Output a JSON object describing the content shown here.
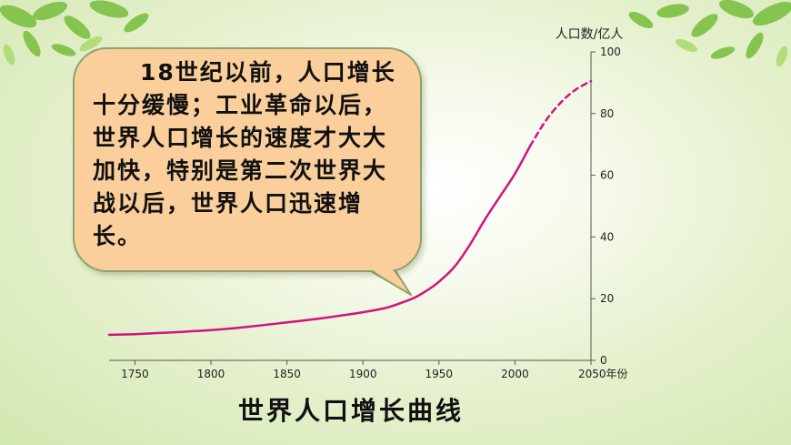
{
  "bubble": {
    "text": "18世纪以前，人口增长十分缓慢；工业革命以后，世界人口增长的速度才大大加快，特别是第二次世界大战以后，世界人口迅速增长。"
  },
  "caption": "世界人口增长曲线",
  "colors": {
    "curve": "#d0147e",
    "axis": "#555555",
    "bubble": "#fbcf9c"
  },
  "chart_data": {
    "type": "line",
    "title": "世界人口增长曲线",
    "ylabel": "人口数/亿人",
    "xlabel": "年份",
    "xlim": [
      1733,
      2050
    ],
    "ylim": [
      0,
      100
    ],
    "x_ticks": [
      1750,
      1800,
      1850,
      1900,
      1950,
      2000,
      2050
    ],
    "x_tick_labels": [
      "1750",
      "1800",
      "1850",
      "1900",
      "1950",
      "2000",
      "2050年份"
    ],
    "y_ticks": [
      0,
      20,
      40,
      60,
      80,
      100
    ],
    "y_tick_labels": [
      "0",
      "20",
      "40",
      "60",
      "80",
      "100"
    ],
    "grid": false,
    "series": [
      {
        "style": "solid",
        "x": [
          1733,
          1750,
          1775,
          1800,
          1825,
          1850,
          1875,
          1900,
          1915,
          1925,
          1935,
          1945,
          1950,
          1960,
          1970,
          1980,
          1990,
          2000,
          2010
        ],
        "y": [
          8.3,
          8.5,
          9.1,
          9.8,
          10.9,
          12.3,
          13.8,
          15.6,
          17.0,
          18.6,
          20.6,
          23.6,
          25.5,
          30.2,
          37.2,
          45.5,
          53.0,
          60.5,
          69.5
        ]
      },
      {
        "style": "dashed",
        "x": [
          2010,
          2020,
          2030,
          2040,
          2050
        ],
        "y": [
          69.5,
          77.5,
          83.5,
          87.8,
          90.5
        ]
      }
    ]
  }
}
